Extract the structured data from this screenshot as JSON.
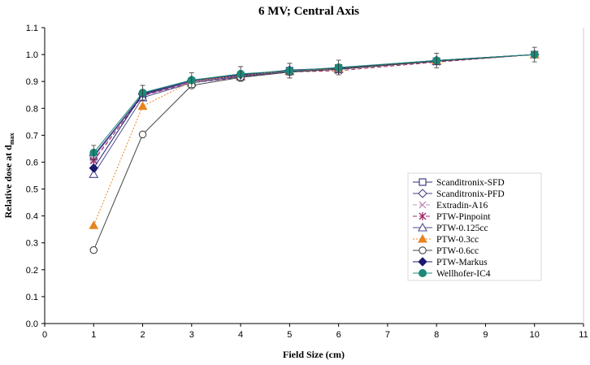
{
  "chart_data": {
    "type": "line",
    "title": "6 MV; Central Axis",
    "xlabel": "Field Size (cm)",
    "ylabel_main": "Relative dose at d",
    "ylabel_sub": "max",
    "xlim": [
      0,
      11
    ],
    "ylim": [
      0.0,
      1.1
    ],
    "xticks": [
      "0",
      "1",
      "2",
      "3",
      "4",
      "5",
      "6",
      "7",
      "8",
      "9",
      "10",
      "11"
    ],
    "yticks": [
      "0.0",
      "0.1",
      "0.2",
      "0.3",
      "0.4",
      "0.5",
      "0.6",
      "0.7",
      "0.8",
      "0.9",
      "1.0",
      "1.1"
    ],
    "grid": false,
    "legend_position": "lower-right",
    "x": [
      1,
      2,
      3,
      4,
      5,
      6,
      8,
      10
    ],
    "series": [
      {
        "name": "Scanditronix-SFD",
        "color": "#2e2e7a",
        "marker": "square-open",
        "dash": "solid",
        "values": [
          0.62,
          0.85,
          0.9,
          0.92,
          0.94,
          0.95,
          0.975,
          1.0
        ]
      },
      {
        "name": "Scanditronix-PFD",
        "color": "#4a3f86",
        "marker": "diamond-open",
        "dash": "solid",
        "values": [
          0.625,
          0.852,
          0.902,
          0.922,
          0.942,
          0.948,
          0.978,
          1.0
        ]
      },
      {
        "name": "Extradin-A16",
        "color": "#c48fb8",
        "marker": "x",
        "dash": "dash",
        "values": [
          0.61,
          0.845,
          0.898,
          0.918,
          0.938,
          0.945,
          0.975,
          1.0
        ]
      },
      {
        "name": "PTW-Pinpoint",
        "color": "#a0286a",
        "marker": "star",
        "dash": "dash",
        "values": [
          0.605,
          0.848,
          0.895,
          0.915,
          0.935,
          0.94,
          0.972,
          1.0
        ]
      },
      {
        "name": "PTW-0.125cc",
        "color": "#4b4b8f",
        "marker": "triangle-open",
        "dash": "solid",
        "values": [
          0.555,
          0.84,
          0.895,
          0.918,
          0.938,
          0.945,
          0.975,
          1.0
        ]
      },
      {
        "name": "PTW-0.3cc",
        "color": "#e8841e",
        "marker": "triangle-filled",
        "dash": "dot",
        "values": [
          0.365,
          0.808,
          0.9,
          0.922,
          0.94,
          0.948,
          0.978,
          1.0
        ]
      },
      {
        "name": "PTW-0.6cc",
        "color": "#444444",
        "marker": "circle-open",
        "dash": "solid",
        "values": [
          0.273,
          0.703,
          0.885,
          0.915,
          0.935,
          0.945,
          0.975,
          1.0
        ]
      },
      {
        "name": "PTW-Markus",
        "color": "#1a1a6e",
        "marker": "diamond-filled",
        "dash": "solid",
        "values": [
          0.578,
          0.855,
          0.905,
          0.925,
          0.942,
          0.95,
          0.978,
          1.0
        ]
      },
      {
        "name": "Wellhofer-IC4",
        "color": "#1b8a7a",
        "marker": "circle-filled",
        "dash": "solid",
        "values": [
          0.635,
          0.858,
          0.905,
          0.928,
          0.94,
          0.952,
          0.978,
          1.0
        ]
      }
    ]
  }
}
